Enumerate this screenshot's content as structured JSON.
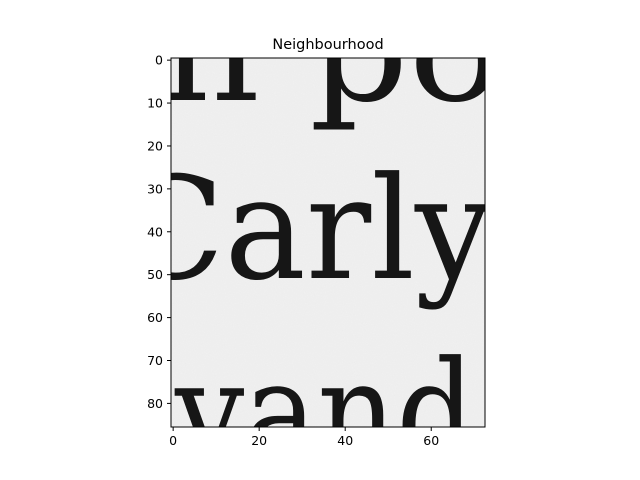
{
  "figure": {
    "title": "Neighbourhood",
    "image_text": [
      {
        "id": "line-1",
        "text": "n po"
      },
      {
        "id": "line-2",
        "text": "Carly"
      },
      {
        "id": "line-3",
        "text": "vand"
      }
    ],
    "image_background": "#f1f1f1",
    "ink_color": "#161616",
    "x_axis": {
      "range": [
        -0.5,
        72.5
      ],
      "ticks": [
        {
          "value": 0,
          "label": "0"
        },
        {
          "value": 20,
          "label": "20"
        },
        {
          "value": 40,
          "label": "40"
        },
        {
          "value": 60,
          "label": "60"
        }
      ]
    },
    "y_axis": {
      "range": [
        -0.5,
        85.5
      ],
      "inverted": true,
      "ticks": [
        {
          "value": 0,
          "label": "0"
        },
        {
          "value": 10,
          "label": "10"
        },
        {
          "value": 20,
          "label": "20"
        },
        {
          "value": 30,
          "label": "30"
        },
        {
          "value": 40,
          "label": "40"
        },
        {
          "value": 50,
          "label": "50"
        },
        {
          "value": 60,
          "label": "60"
        },
        {
          "value": 70,
          "label": "70"
        },
        {
          "value": 80,
          "label": "80"
        }
      ]
    }
  }
}
